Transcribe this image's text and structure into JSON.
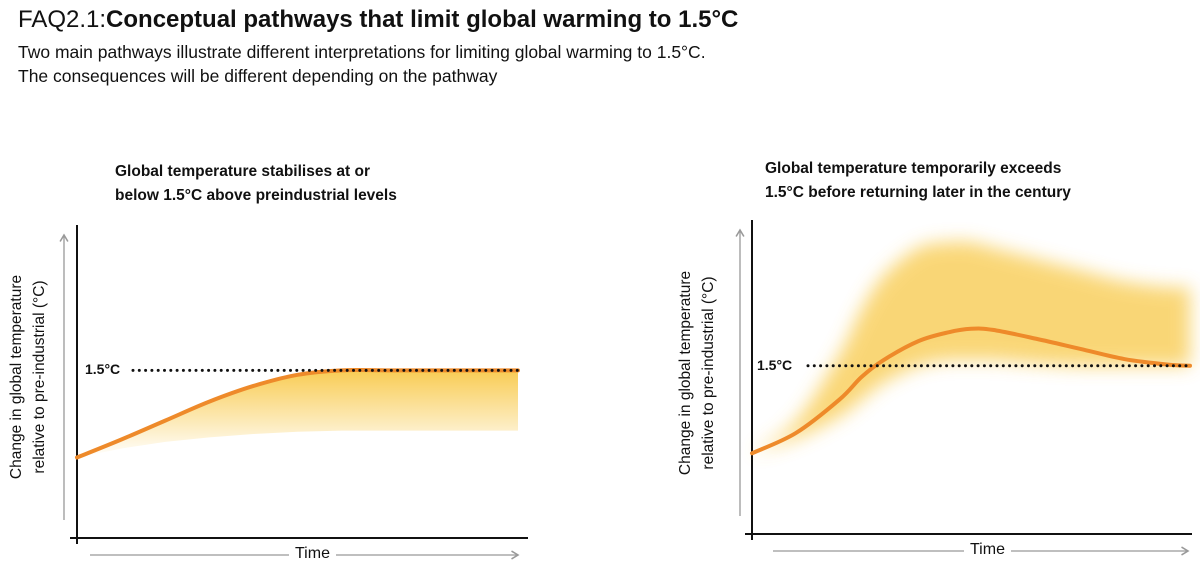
{
  "header": {
    "title_prefix": "FAQ2.1:",
    "title_main": "Conceptual pathways that limit global warming to 1.5°C",
    "subtitle_1": "Two main pathways illustrate different interpretations for limiting global warming to 1.5°C.",
    "subtitle_2": "The consequences will be different depending on the pathway"
  },
  "colors": {
    "curve": "#ee8a2a",
    "band": "#f8c94a",
    "axis": "#111111",
    "arrow": "#999999"
  },
  "chart_data": [
    {
      "type": "line",
      "title_1": "Global temperature stabilises at or",
      "title_2": "below 1.5°C above preindustrial levels",
      "ylabel_1": "Change in global temperature",
      "ylabel_2": "relative to pre-industrial (°C)",
      "xlabel": "Time",
      "threshold": 1.5,
      "threshold_label": "1.5°C",
      "xlim": [
        0,
        100
      ],
      "ylim": [
        0,
        2.8
      ],
      "x": [
        0,
        10,
        20,
        30,
        40,
        50,
        60,
        70,
        80,
        90,
        100
      ],
      "values": [
        0.72,
        0.88,
        1.05,
        1.22,
        1.36,
        1.46,
        1.5,
        1.5,
        1.5,
        1.5,
        1.5
      ],
      "band_upper": [
        0.72,
        0.88,
        1.05,
        1.22,
        1.36,
        1.46,
        1.5,
        1.5,
        1.5,
        1.5,
        1.5
      ],
      "band_lower": [
        0.72,
        0.8,
        0.86,
        0.9,
        0.93,
        0.95,
        0.96,
        0.96,
        0.96,
        0.96,
        0.96
      ]
    },
    {
      "type": "line",
      "title_1": "Global temperature temporarily exceeds",
      "title_2": "1.5°C before returning later in the century",
      "ylabel_1": "Change in global temperature",
      "ylabel_2": "relative to pre-industrial (°C)",
      "xlabel": "Time",
      "threshold": 1.5,
      "threshold_label": "1.5°C",
      "xlim": [
        0,
        100
      ],
      "ylim": [
        0,
        2.8
      ],
      "x": [
        0,
        10,
        20,
        25,
        30,
        38,
        45,
        50,
        55,
        65,
        75,
        85,
        95,
        100
      ],
      "values": [
        0.72,
        0.9,
        1.2,
        1.4,
        1.55,
        1.72,
        1.8,
        1.83,
        1.82,
        1.74,
        1.65,
        1.56,
        1.51,
        1.5
      ],
      "band_upper": [
        0.72,
        1.0,
        1.6,
        2.0,
        2.3,
        2.55,
        2.6,
        2.6,
        2.55,
        2.45,
        2.35,
        2.25,
        2.2,
        2.2
      ],
      "band_lower": [
        0.72,
        0.85,
        1.05,
        1.2,
        1.35,
        1.5,
        1.55,
        1.55,
        1.55,
        1.52,
        1.5,
        1.5,
        1.5,
        1.5
      ]
    }
  ]
}
